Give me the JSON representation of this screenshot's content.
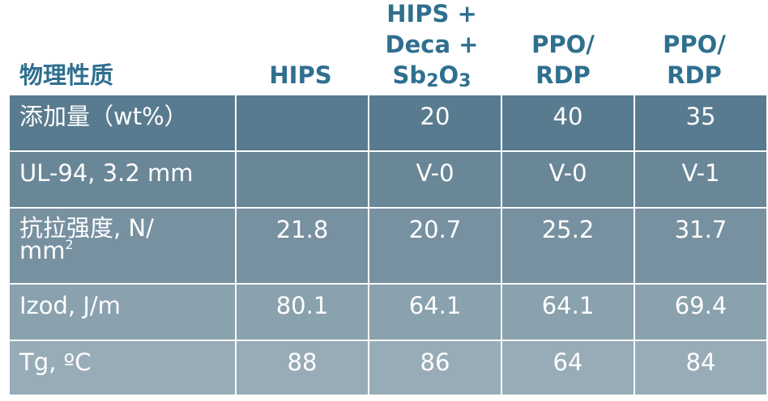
{
  "table": {
    "headers": {
      "property": "物理性质",
      "col1": "HIPS",
      "col2_line1": "HIPS +",
      "col2_line2": "Deca +",
      "col2_sb": "Sb",
      "col2_sub1": "2",
      "col2_o": "O",
      "col2_sub2": "3",
      "col3": "PPO/\nRDP",
      "col4": "PPO/\nRDP"
    },
    "rows": [
      {
        "label": "添加量（wt%）",
        "values": [
          "",
          "20",
          "40",
          "35"
        ]
      },
      {
        "label": "UL-94, 3.2 mm",
        "values": [
          "",
          "V-0",
          "V-0",
          "V-1"
        ]
      },
      {
        "label_line1": "抗拉强度, N/",
        "label_line2": "mm",
        "label_sup": "2",
        "values": [
          "21.8",
          "20.7",
          "25.2",
          "31.7"
        ]
      },
      {
        "label": "Izod, J/m",
        "values": [
          "80.1",
          "64.1",
          "64.1",
          "69.4"
        ]
      },
      {
        "label": "Tg, ºC",
        "values": [
          "88",
          "86",
          "64",
          "84"
        ]
      }
    ]
  },
  "colors": {
    "header_text": "#2f6f8f",
    "row_bg": [
      "#597b8f",
      "#6a8798",
      "#7891a1",
      "#8aa1ae",
      "#98acb8"
    ],
    "cell_text": "#ffffff"
  }
}
